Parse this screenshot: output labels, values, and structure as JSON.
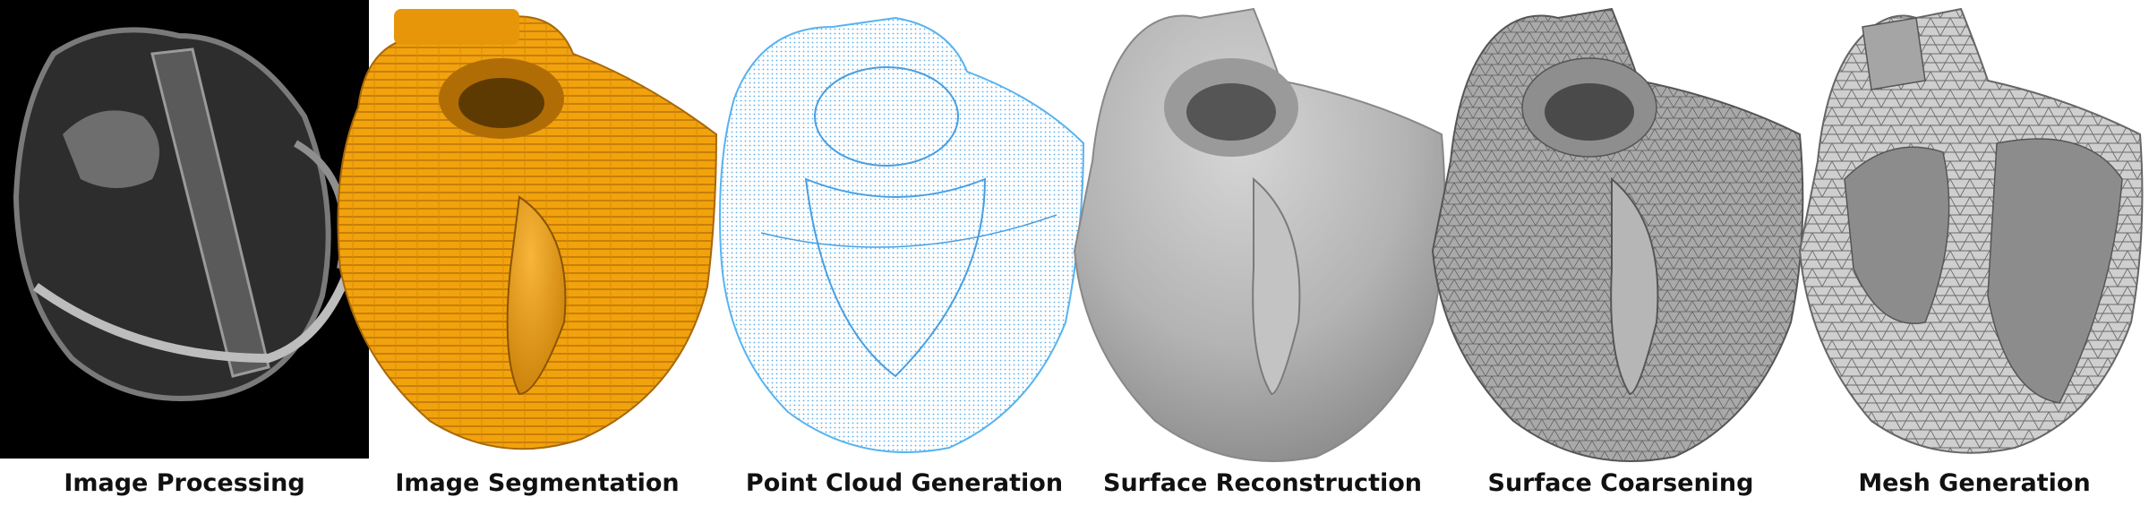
{
  "pipeline": {
    "stages": [
      {
        "label": "Image Processing"
      },
      {
        "label": "Image Segmentation"
      },
      {
        "label": "Point Cloud Generation"
      },
      {
        "label": "Surface Reconstruction"
      },
      {
        "label": "Surface Coarsening"
      },
      {
        "label": "Mesh Generation"
      }
    ]
  },
  "colors": {
    "background": "#ffffff",
    "ct_background": "#000000",
    "segmentation": "#f2a20c",
    "point_cloud": "#3aa6ee",
    "surface": "#b9b9b9",
    "mesh_edges": "#555555",
    "label_text": "#111111"
  }
}
